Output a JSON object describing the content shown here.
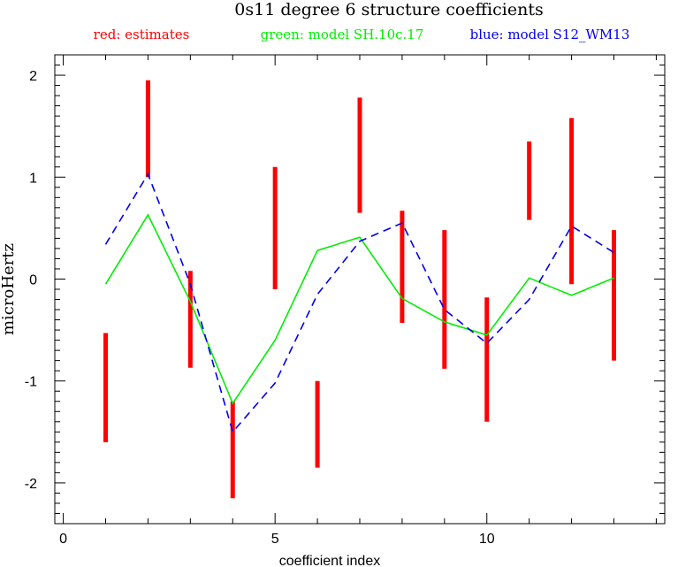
{
  "chart_data": {
    "type": "line",
    "title": "0s11 degree 6 structure coefficients",
    "xlabel": "coefficient index",
    "ylabel": "microHertz",
    "xlim": [
      -0.2,
      14.2
    ],
    "ylim": [
      -2.4,
      2.2
    ],
    "x_ticks": [
      0,
      5,
      10
    ],
    "y_ticks": [
      -2,
      -1,
      0,
      1,
      2
    ],
    "grid": false,
    "legend": [
      {
        "label": "red: estimates",
        "color": "#ff0000"
      },
      {
        "label": "green: model SH.10c.17",
        "color": "#00ee00"
      },
      {
        "label": "blue: model S12_WM13",
        "color": "#0000ee"
      }
    ],
    "series": [
      {
        "name": "estimates",
        "kind": "errorbar",
        "color": "#ff0000",
        "x": [
          1,
          2,
          3,
          4,
          5,
          6,
          7,
          8,
          9,
          10,
          11,
          12,
          13
        ],
        "low": [
          -1.6,
          1.0,
          -0.87,
          -2.15,
          -0.1,
          -1.85,
          0.65,
          -0.43,
          -0.88,
          -1.4,
          0.58,
          -0.05,
          -0.8
        ],
        "high": [
          -0.53,
          1.95,
          0.08,
          -1.2,
          1.1,
          -1.0,
          1.78,
          0.67,
          0.48,
          -0.18,
          1.35,
          1.58,
          0.48
        ]
      },
      {
        "name": "model SH.10c.17",
        "kind": "solid",
        "color": "#00ee00",
        "x": [
          1,
          2,
          3,
          4,
          5,
          6,
          7,
          8,
          9,
          10,
          11,
          12,
          13
        ],
        "y": [
          -0.05,
          0.63,
          -0.22,
          -1.22,
          -0.6,
          0.28,
          0.41,
          -0.19,
          -0.42,
          -0.55,
          0.01,
          -0.16,
          0.01
        ]
      },
      {
        "name": "model S12_WM13",
        "kind": "dashed",
        "color": "#0000ee",
        "x": [
          1,
          2,
          3,
          4,
          5,
          6,
          7,
          8,
          9,
          10,
          11,
          12,
          13
        ],
        "y": [
          0.34,
          1.03,
          -0.05,
          -1.5,
          -1.02,
          -0.15,
          0.37,
          0.55,
          -0.3,
          -0.63,
          -0.2,
          0.52,
          0.26
        ]
      }
    ]
  }
}
